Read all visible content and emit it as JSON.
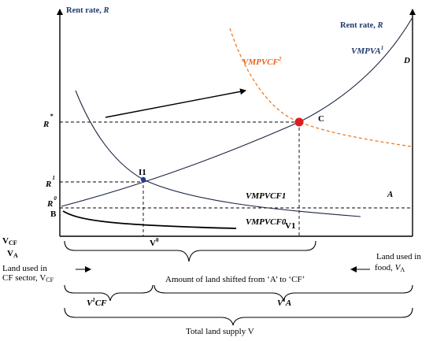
{
  "axis_left_label": "Rent rate, ",
  "axis_left_label_var": "R",
  "axis_right_label": "Rent rate, ",
  "axis_right_label_var": "R",
  "curves": {
    "vmpvcf2": {
      "base": "VMPVCF",
      "sup": "2"
    },
    "vmpva1": {
      "base": "VMPVA",
      "sup": "1"
    },
    "d": "D",
    "vmpvcf1": "VMPVCF1",
    "vmpvcf0": "VMPVCF0",
    "a": "A"
  },
  "y_ticks": {
    "rstar": {
      "base": "R",
      "sup": "*"
    },
    "r1": {
      "base": "R",
      "sup": "1"
    },
    "r0": {
      "base": "R",
      "sup": "0"
    },
    "b": "B"
  },
  "points": {
    "c": "C",
    "i1": "I1"
  },
  "x_labels": {
    "v1": "V1",
    "v0": {
      "base": "V",
      "sup": "0"
    }
  },
  "left_legend": {
    "vcf": {
      "base": "V",
      "sub": "CF"
    },
    "va": {
      "base": "V",
      "sub": "A"
    }
  },
  "land_cf": {
    "line1": "Land used in",
    "line2": "CF sector, V",
    "line2_sub": "CF"
  },
  "land_food": {
    "line1": "Land used in",
    "line2": "food, ",
    "line2_var": "V",
    "line2_sub": "A"
  },
  "amount_shifted": "Amount of land shifted from ‘A’ to ‘CF’",
  "v1cf": {
    "base": "V",
    "sup": "1",
    "rest": "CF"
  },
  "v1a": {
    "base": "V",
    "sup": "1",
    "rest": "A"
  },
  "total_land": "Total land supply V",
  "colors": {
    "navy": "#1f3a6e",
    "orange": "#f07a21",
    "red": "#e01b1b"
  }
}
